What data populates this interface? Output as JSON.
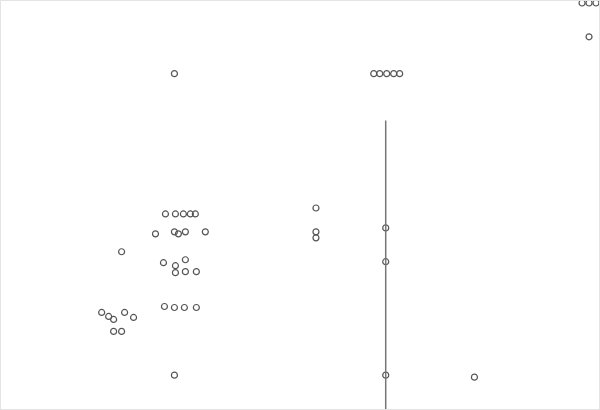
{
  "chart_data": {
    "type": "scatter",
    "xlim": [
      0,
      600
    ],
    "ylim": [
      0,
      410
    ],
    "xticks": [],
    "yticks": [],
    "tick_labels": false,
    "grid": false,
    "series": [
      {
        "type": "scatter",
        "color": "#555555",
        "marker": "circle-open",
        "x": [
          174,
          374,
          380,
          387,
          394,
          400,
          165,
          175,
          183,
          190,
          195,
          155,
          174,
          178,
          185,
          205,
          163,
          175,
          185,
          175,
          185,
          196,
          164,
          174,
          184,
          196,
          121,
          101,
          108,
          113,
          124,
          133,
          113,
          121,
          174,
          316,
          316,
          316,
          475,
          590,
          583,
          590,
          597,
          386,
          386,
          386
        ],
        "values": [
          337,
          337,
          337,
          337,
          337,
          337,
          196,
          196,
          196,
          196,
          196,
          176,
          178,
          176,
          178,
          178,
          147,
          144,
          150,
          137,
          138,
          138,
          103,
          102,
          102,
          102,
          158,
          97,
          93,
          90,
          97,
          92,
          78,
          78,
          34,
          202,
          178,
          172,
          32,
          374,
          408,
          408,
          408,
          182,
          148,
          34
        ]
      },
      {
        "type": "line",
        "color": "#777777",
        "line_style": "solid",
        "x": [
          386,
          386
        ],
        "values": [
          290,
          0
        ]
      }
    ]
  }
}
